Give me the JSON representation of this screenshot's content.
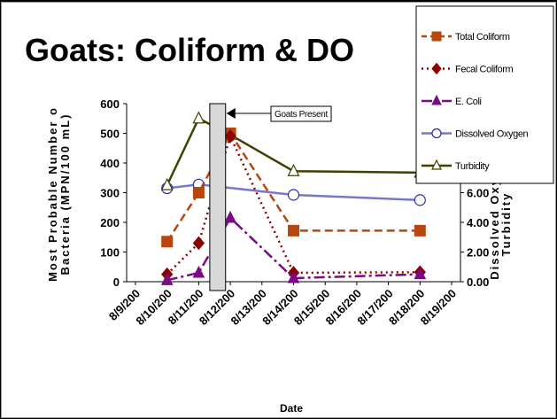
{
  "slide_title": "Goats: Coliform & DO",
  "chart_data": {
    "type": "line",
    "title": "Goats: Coliform & DO",
    "xlabel": "Date",
    "ylabel": "Most Probable Number o Bacteria (MPN/100 mL)",
    "y2label_line1": "Dissolved Oxyg",
    "y2label_line2": "Turbidity",
    "categories": [
      "8/9/200",
      "8/10/200",
      "8/11/200",
      "8/12/200",
      "8/13/200",
      "8/14/200",
      "8/15/200",
      "8/16/200",
      "8/17/200",
      "8/18/200",
      "8/19/200"
    ],
    "ylim": [
      0,
      600
    ],
    "yticks": [
      "0",
      "100",
      "200",
      "300",
      "400",
      "500",
      "600"
    ],
    "y2lim": [
      0,
      12
    ],
    "y2ticks": [
      "0.00",
      "2.00",
      "4.00",
      "6.00"
    ],
    "series": [
      {
        "name": "Total Coliform",
        "axis": "left",
        "color": "#B8460F",
        "marker": "square",
        "dash": "9,5",
        "points": [
          [
            1,
            135
          ],
          [
            2,
            300
          ],
          [
            3,
            500
          ],
          [
            5,
            172
          ],
          [
            9,
            172
          ]
        ]
      },
      {
        "name": "Fecal Coliform",
        "axis": "left",
        "color": "#8B0000",
        "marker": "diamond",
        "dash": "2,4",
        "points": [
          [
            1,
            25
          ],
          [
            2,
            130
          ],
          [
            3,
            490
          ],
          [
            5,
            30
          ],
          [
            9,
            32
          ]
        ]
      },
      {
        "name": "E. Coli",
        "axis": "left",
        "color": "#7A0A85",
        "marker": "triangle",
        "dash": "12,4,3,4",
        "points": [
          [
            1,
            5
          ],
          [
            2,
            30
          ],
          [
            3,
            215
          ],
          [
            5,
            12
          ],
          [
            9,
            25
          ]
        ]
      },
      {
        "name": "Dissolved Oxygen",
        "axis": "right",
        "color": "#7777CC",
        "marker": "circle-open",
        "dash": "",
        "points": [
          [
            1,
            6.3
          ],
          [
            2,
            6.55
          ],
          [
            5,
            5.85
          ],
          [
            9,
            5.5
          ]
        ]
      },
      {
        "name": "Turbidity",
        "axis": "right",
        "color": "#404000",
        "marker": "triangle-open",
        "dash": "",
        "points": [
          [
            1,
            6.5
          ],
          [
            2,
            11
          ],
          [
            3,
            9.9
          ],
          [
            5,
            7.45
          ],
          [
            9,
            7.35
          ]
        ]
      }
    ],
    "annotation": {
      "text": "Goats Present",
      "x_from": 2.35,
      "x_to": 2.85
    },
    "grid": false,
    "legend": "top-right"
  }
}
